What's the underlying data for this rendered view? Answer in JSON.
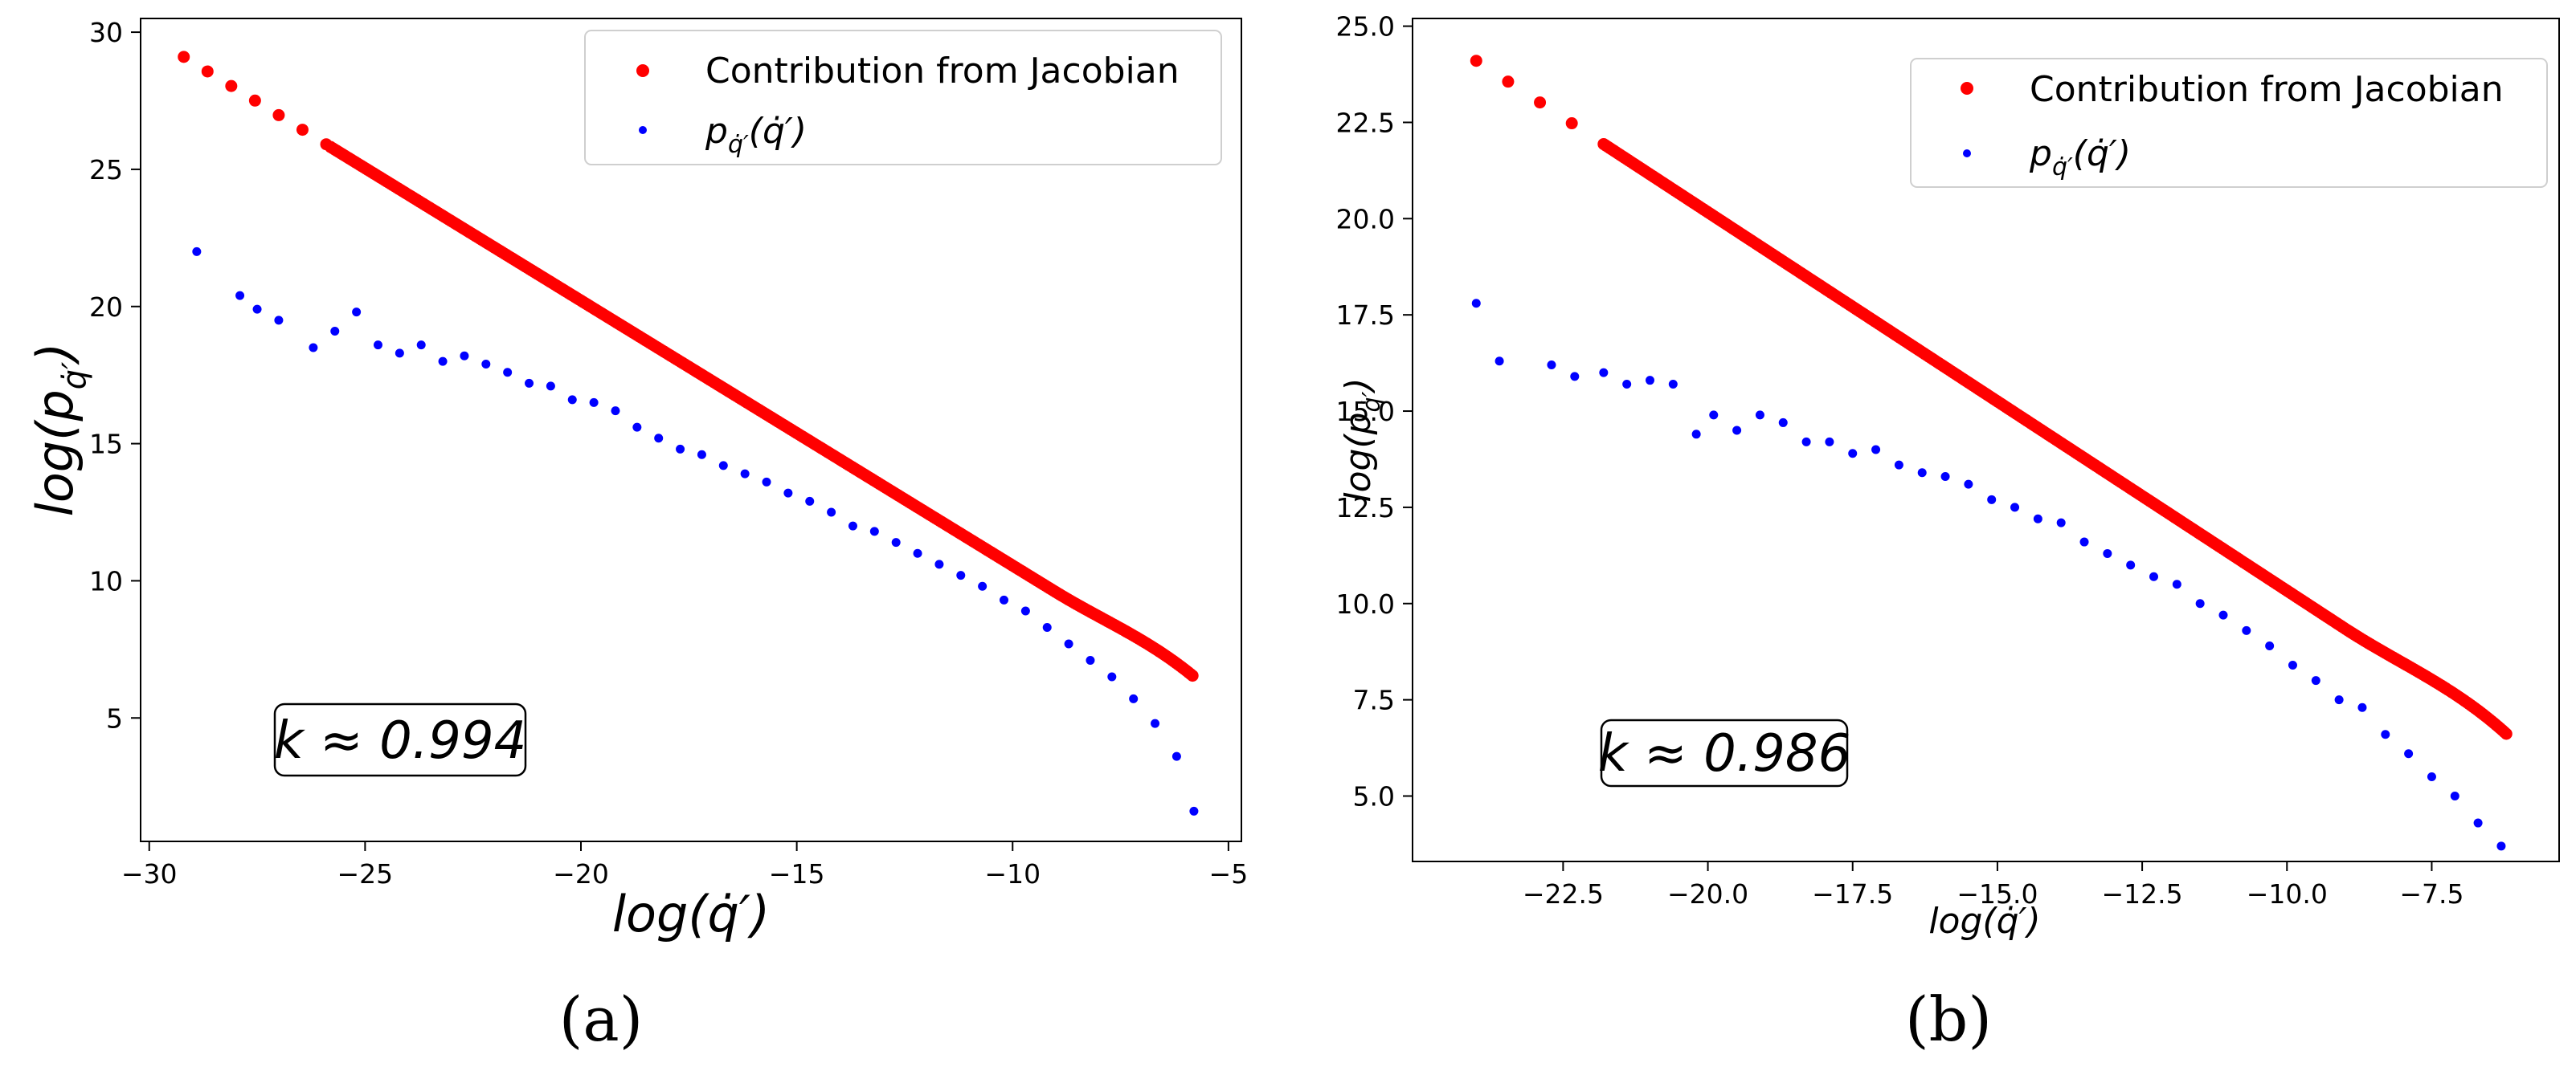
{
  "chart_data": [
    {
      "type": "scatter",
      "panel_caption": "(a)",
      "xlabel": "log(q̇′)",
      "ylabel": "log(p",
      "ylabel_sub": "q̇′",
      "ylabel_close": ")",
      "xlim": [
        -30.2,
        -4.7
      ],
      "ylim": [
        0.5,
        30.5
      ],
      "xticks": [
        -30,
        -25,
        -20,
        -15,
        -10,
        -5
      ],
      "yticks": [
        5,
        10,
        15,
        20,
        25,
        30
      ],
      "legend_position": "top-right",
      "series": [
        {
          "name": "Contribution from Jacobian",
          "color": "#ff0000",
          "kind": "line-dots",
          "from": [
            -29.2,
            29.1
          ],
          "to": [
            -5.8,
            6.5
          ],
          "curve_start": -9.0,
          "sparse_until": -25.8,
          "step": 0.048
        },
        {
          "name": "p",
          "name_sub": "q̇′",
          "name_arg": "(q̇′)",
          "color": "#0000ff",
          "kind": "points",
          "x": [
            -28.9,
            -27.9,
            -27.5,
            -27.0,
            -26.2,
            -25.7,
            -25.2,
            -24.7,
            -24.2,
            -23.7,
            -23.2,
            -22.7,
            -22.2,
            -21.7,
            -21.2,
            -20.7,
            -20.2,
            -19.7,
            -19.2,
            -18.7,
            -18.2,
            -17.7,
            -17.2,
            -16.7,
            -16.2,
            -15.7,
            -15.2,
            -14.7,
            -14.2,
            -13.7,
            -13.2,
            -12.7,
            -12.2,
            -11.7,
            -11.2,
            -10.7,
            -10.2,
            -9.7,
            -9.2,
            -8.7,
            -8.2,
            -7.7,
            -7.2,
            -6.7,
            -6.2,
            -5.8
          ],
          "y": [
            22.0,
            20.4,
            19.9,
            19.5,
            18.5,
            19.1,
            19.8,
            18.6,
            18.3,
            18.6,
            18.0,
            18.2,
            17.9,
            17.6,
            17.2,
            17.1,
            16.6,
            16.5,
            16.2,
            15.6,
            15.2,
            14.8,
            14.6,
            14.2,
            13.9,
            13.6,
            13.2,
            12.9,
            12.5,
            12.0,
            11.8,
            11.4,
            11.0,
            10.6,
            10.2,
            9.8,
            9.3,
            8.9,
            8.3,
            7.7,
            7.1,
            6.5,
            5.7,
            4.8,
            3.6,
            1.6
          ]
        }
      ],
      "annotation": "k ≈ 0.994",
      "annotation_at": [
        -26.3,
        4.8
      ]
    },
    {
      "type": "scatter",
      "panel_caption": "(b)",
      "xlabel": "log(q̇′)",
      "ylabel": "log(p",
      "ylabel_sub": "q̇′",
      "ylabel_close": ")",
      "xlim": [
        -25.1,
        -5.3
      ],
      "ylim": [
        3.3,
        25.2
      ],
      "xticks": [
        -22.5,
        -20.0,
        -17.5,
        -15.0,
        -12.5,
        -10.0,
        -7.5
      ],
      "xtick_labels": [
        "−22.5",
        "−20.0",
        "−17.5",
        "−15.0",
        "−12.5",
        "−10.0",
        "−7.5"
      ],
      "yticks": [
        5.0,
        7.5,
        10.0,
        12.5,
        15.0,
        17.5,
        20.0,
        22.5,
        25.0
      ],
      "ytick_labels": [
        "5.0",
        "7.5",
        "10.0",
        "12.5",
        "15.0",
        "17.5",
        "20.0",
        "22.5",
        "25.0"
      ],
      "legend_position": "top-right",
      "series": [
        {
          "name": "Contribution from Jacobian",
          "color": "#ff0000",
          "kind": "line-dots",
          "from": [
            -24.0,
            24.1
          ],
          "to": [
            -6.2,
            6.6
          ],
          "curve_start": -9.0,
          "sparse_until": -21.8,
          "step": 0.036
        },
        {
          "name": "p",
          "name_sub": "q̇′",
          "name_arg": "(q̇′)",
          "color": "#0000ff",
          "kind": "points",
          "x": [
            -24.0,
            -23.6,
            -22.7,
            -22.3,
            -21.8,
            -21.4,
            -21.0,
            -20.6,
            -20.2,
            -19.9,
            -19.5,
            -19.1,
            -18.7,
            -18.3,
            -17.9,
            -17.5,
            -17.1,
            -16.7,
            -16.3,
            -15.9,
            -15.5,
            -15.1,
            -14.7,
            -14.3,
            -13.9,
            -13.5,
            -13.1,
            -12.7,
            -12.3,
            -11.9,
            -11.5,
            -11.1,
            -10.7,
            -10.3,
            -9.9,
            -9.5,
            -9.1,
            -8.7,
            -8.3,
            -7.9,
            -7.5,
            -7.1,
            -6.7,
            -6.3
          ],
          "y": [
            17.8,
            16.3,
            16.2,
            15.9,
            16.0,
            15.7,
            15.8,
            15.7,
            14.4,
            14.9,
            14.5,
            14.9,
            14.7,
            14.2,
            14.2,
            13.9,
            14.0,
            13.6,
            13.4,
            13.3,
            13.1,
            12.7,
            12.5,
            12.2,
            12.1,
            11.6,
            11.3,
            11.0,
            10.7,
            10.5,
            10.0,
            9.7,
            9.3,
            8.9,
            8.4,
            8.0,
            7.5,
            7.3,
            6.6,
            6.1,
            5.5,
            5.0,
            4.3,
            3.7
          ]
        }
      ],
      "annotation": "k ≈ 0.986",
      "annotation_at": [
        -23.1,
        5.5
      ]
    }
  ]
}
